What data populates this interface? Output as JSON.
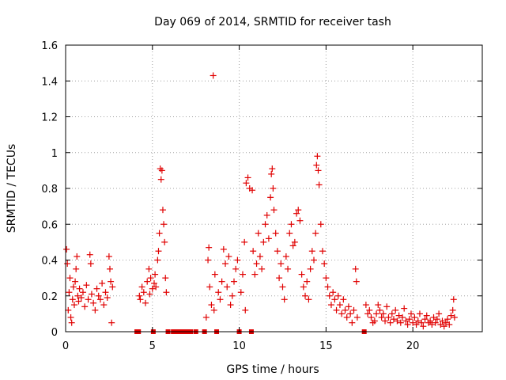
{
  "chart_data": {
    "type": "scatter",
    "title": "Day 069 of 2014, SRMTID for receiver tash",
    "xlabel": "GPS time / hours",
    "ylabel": "SRMTID / TECUs",
    "xlim": [
      0,
      24
    ],
    "ylim": [
      0,
      1.6
    ],
    "xticks": [
      0,
      5,
      10,
      15,
      20
    ],
    "xtick_labels": [
      "0",
      "5",
      "10",
      "15",
      "20"
    ],
    "yticks": [
      0,
      0.2,
      0.4,
      0.6,
      0.8,
      1.0,
      1.2,
      1.4,
      1.6
    ],
    "ytick_labels": [
      "0",
      "0.2",
      "0.4",
      "0.6",
      "0.8",
      "1",
      "1.2",
      "1.4",
      "1.6"
    ],
    "grid": true,
    "marker": "+",
    "color": "#e00000",
    "series": [
      {
        "name": "SRMTID",
        "points": [
          [
            0.05,
            0.46
          ],
          [
            0.1,
            0.38
          ],
          [
            0.15,
            0.12
          ],
          [
            0.2,
            0.22
          ],
          [
            0.25,
            0.3
          ],
          [
            0.3,
            0.08
          ],
          [
            0.35,
            0.05
          ],
          [
            0.4,
            0.18
          ],
          [
            0.45,
            0.25
          ],
          [
            0.5,
            0.15
          ],
          [
            0.55,
            0.28
          ],
          [
            0.6,
            0.35
          ],
          [
            0.65,
            0.42
          ],
          [
            0.7,
            0.2
          ],
          [
            0.75,
            0.17
          ],
          [
            0.8,
            0.24
          ],
          [
            0.9,
            0.19
          ],
          [
            1.0,
            0.22
          ],
          [
            1.1,
            0.14
          ],
          [
            1.2,
            0.26
          ],
          [
            1.3,
            0.18
          ],
          [
            1.4,
            0.43
          ],
          [
            1.45,
            0.38
          ],
          [
            1.5,
            0.21
          ],
          [
            1.6,
            0.16
          ],
          [
            1.7,
            0.12
          ],
          [
            1.8,
            0.24
          ],
          [
            1.9,
            0.2
          ],
          [
            2.0,
            0.18
          ],
          [
            2.1,
            0.27
          ],
          [
            2.2,
            0.15
          ],
          [
            2.3,
            0.22
          ],
          [
            2.4,
            0.19
          ],
          [
            2.5,
            0.42
          ],
          [
            2.55,
            0.35
          ],
          [
            2.6,
            0.28
          ],
          [
            2.65,
            0.05
          ],
          [
            2.7,
            0.25
          ],
          [
            4.1,
            0.0
          ],
          [
            4.2,
            0.0
          ],
          [
            4.25,
            0.2
          ],
          [
            4.3,
            0.18
          ],
          [
            4.4,
            0.25
          ],
          [
            4.5,
            0.22
          ],
          [
            4.6,
            0.16
          ],
          [
            4.7,
            0.28
          ],
          [
            4.8,
            0.35
          ],
          [
            4.85,
            0.21
          ],
          [
            4.9,
            0.3
          ],
          [
            5.0,
            0.24
          ],
          [
            5.05,
            0.0
          ],
          [
            5.1,
            0.27
          ],
          [
            5.15,
            0.32
          ],
          [
            5.2,
            0.25
          ],
          [
            5.3,
            0.4
          ],
          [
            5.35,
            0.45
          ],
          [
            5.4,
            0.55
          ],
          [
            5.45,
            0.91
          ],
          [
            5.5,
            0.85
          ],
          [
            5.55,
            0.9
          ],
          [
            5.6,
            0.68
          ],
          [
            5.65,
            0.6
          ],
          [
            5.7,
            0.5
          ],
          [
            5.75,
            0.3
          ],
          [
            5.8,
            0.22
          ],
          [
            5.9,
            0.0
          ],
          [
            6.2,
            0.0
          ],
          [
            6.4,
            0.0
          ],
          [
            6.6,
            0.0
          ],
          [
            6.8,
            0.0
          ],
          [
            7.0,
            0.0
          ],
          [
            7.2,
            0.0
          ],
          [
            7.5,
            0.0
          ],
          [
            8.0,
            0.0
          ],
          [
            8.1,
            0.08
          ],
          [
            8.2,
            0.4
          ],
          [
            8.25,
            0.47
          ],
          [
            8.3,
            0.25
          ],
          [
            8.4,
            0.15
          ],
          [
            8.5,
            1.43
          ],
          [
            8.55,
            0.12
          ],
          [
            8.6,
            0.32
          ],
          [
            8.7,
            0.0
          ],
          [
            8.8,
            0.22
          ],
          [
            8.9,
            0.18
          ],
          [
            9.0,
            0.28
          ],
          [
            9.1,
            0.46
          ],
          [
            9.2,
            0.38
          ],
          [
            9.3,
            0.25
          ],
          [
            9.4,
            0.42
          ],
          [
            9.5,
            0.15
          ],
          [
            9.6,
            0.2
          ],
          [
            9.7,
            0.28
          ],
          [
            9.8,
            0.35
          ],
          [
            9.9,
            0.4
          ],
          [
            10.0,
            0.0
          ],
          [
            10.1,
            0.22
          ],
          [
            10.2,
            0.32
          ],
          [
            10.3,
            0.5
          ],
          [
            10.35,
            0.12
          ],
          [
            10.4,
            0.83
          ],
          [
            10.5,
            0.86
          ],
          [
            10.6,
            0.8
          ],
          [
            10.7,
            0.0
          ],
          [
            10.75,
            0.79
          ],
          [
            10.8,
            0.45
          ],
          [
            10.9,
            0.32
          ],
          [
            11.0,
            0.38
          ],
          [
            11.1,
            0.55
          ],
          [
            11.2,
            0.42
          ],
          [
            11.3,
            0.35
          ],
          [
            11.4,
            0.5
          ],
          [
            11.5,
            0.6
          ],
          [
            11.6,
            0.65
          ],
          [
            11.7,
            0.52
          ],
          [
            11.8,
            0.75
          ],
          [
            11.85,
            0.88
          ],
          [
            11.9,
            0.91
          ],
          [
            11.95,
            0.8
          ],
          [
            12.0,
            0.68
          ],
          [
            12.1,
            0.55
          ],
          [
            12.2,
            0.45
          ],
          [
            12.3,
            0.3
          ],
          [
            12.4,
            0.38
          ],
          [
            12.5,
            0.25
          ],
          [
            12.6,
            0.18
          ],
          [
            12.7,
            0.42
          ],
          [
            12.8,
            0.35
          ],
          [
            12.9,
            0.55
          ],
          [
            13.0,
            0.6
          ],
          [
            13.1,
            0.48
          ],
          [
            13.2,
            0.5
          ],
          [
            13.3,
            0.66
          ],
          [
            13.4,
            0.68
          ],
          [
            13.5,
            0.62
          ],
          [
            13.6,
            0.32
          ],
          [
            13.7,
            0.25
          ],
          [
            13.8,
            0.2
          ],
          [
            13.9,
            0.28
          ],
          [
            14.0,
            0.18
          ],
          [
            14.1,
            0.35
          ],
          [
            14.2,
            0.45
          ],
          [
            14.3,
            0.4
          ],
          [
            14.4,
            0.55
          ],
          [
            14.45,
            0.93
          ],
          [
            14.5,
            0.98
          ],
          [
            14.55,
            0.9
          ],
          [
            14.6,
            0.82
          ],
          [
            14.7,
            0.6
          ],
          [
            14.8,
            0.45
          ],
          [
            14.9,
            0.38
          ],
          [
            15.0,
            0.3
          ],
          [
            15.1,
            0.25
          ],
          [
            15.2,
            0.2
          ],
          [
            15.3,
            0.15
          ],
          [
            15.4,
            0.22
          ],
          [
            15.5,
            0.18
          ],
          [
            15.6,
            0.12
          ],
          [
            15.7,
            0.2
          ],
          [
            15.8,
            0.15
          ],
          [
            15.9,
            0.1
          ],
          [
            16.0,
            0.18
          ],
          [
            16.1,
            0.12
          ],
          [
            16.2,
            0.08
          ],
          [
            16.3,
            0.14
          ],
          [
            16.4,
            0.1
          ],
          [
            16.5,
            0.05
          ],
          [
            16.6,
            0.12
          ],
          [
            16.7,
            0.35
          ],
          [
            16.75,
            0.28
          ],
          [
            16.8,
            0.08
          ],
          [
            17.2,
            0.0
          ],
          [
            17.3,
            0.15
          ],
          [
            17.4,
            0.1
          ],
          [
            17.5,
            0.12
          ],
          [
            17.6,
            0.08
          ],
          [
            17.7,
            0.05
          ],
          [
            17.8,
            0.06
          ],
          [
            17.9,
            0.1
          ],
          [
            18.0,
            0.15
          ],
          [
            18.1,
            0.12
          ],
          [
            18.2,
            0.08
          ],
          [
            18.3,
            0.1
          ],
          [
            18.4,
            0.06
          ],
          [
            18.5,
            0.14
          ],
          [
            18.6,
            0.08
          ],
          [
            18.7,
            0.05
          ],
          [
            18.8,
            0.1
          ],
          [
            18.9,
            0.07
          ],
          [
            19.0,
            0.12
          ],
          [
            19.1,
            0.06
          ],
          [
            19.2,
            0.09
          ],
          [
            19.3,
            0.05
          ],
          [
            19.4,
            0.08
          ],
          [
            19.5,
            0.13
          ],
          [
            19.6,
            0.06
          ],
          [
            19.7,
            0.04
          ],
          [
            19.8,
            0.07
          ],
          [
            19.9,
            0.1
          ],
          [
            20.0,
            0.05
          ],
          [
            20.1,
            0.08
          ],
          [
            20.2,
            0.04
          ],
          [
            20.3,
            0.06
          ],
          [
            20.4,
            0.1
          ],
          [
            20.5,
            0.05
          ],
          [
            20.6,
            0.03
          ],
          [
            20.7,
            0.07
          ],
          [
            20.8,
            0.09
          ],
          [
            20.9,
            0.05
          ],
          [
            21.0,
            0.06
          ],
          [
            21.1,
            0.04
          ],
          [
            21.2,
            0.08
          ],
          [
            21.3,
            0.05
          ],
          [
            21.4,
            0.07
          ],
          [
            21.5,
            0.1
          ],
          [
            21.6,
            0.04
          ],
          [
            21.7,
            0.06
          ],
          [
            21.8,
            0.03
          ],
          [
            21.9,
            0.05
          ],
          [
            22.0,
            0.07
          ],
          [
            22.1,
            0.04
          ],
          [
            22.2,
            0.09
          ],
          [
            22.3,
            0.12
          ],
          [
            22.35,
            0.18
          ],
          [
            22.4,
            0.08
          ]
        ]
      }
    ]
  }
}
